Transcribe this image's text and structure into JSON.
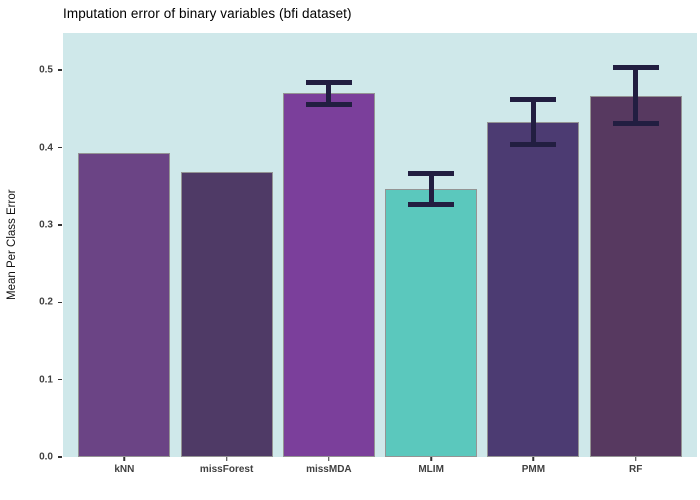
{
  "chart_data": {
    "type": "bar",
    "title": "Imputation error of binary variables (bfi dataset)",
    "xlabel": "",
    "ylabel": "Mean Per Class Error",
    "categories": [
      "kNN",
      "missForest",
      "missMDA",
      "MLIM",
      "PMM",
      "RF"
    ],
    "values": [
      0.393,
      0.369,
      0.47,
      0.346,
      0.433,
      0.467
    ],
    "error_low": [
      null,
      null,
      0.456,
      0.326,
      0.404,
      0.431
    ],
    "error_high": [
      null,
      null,
      0.484,
      0.366,
      0.462,
      0.504
    ],
    "bar_colors": [
      "#6B4485",
      "#4F3A66",
      "#7B3F9B",
      "#5BC8BD",
      "#4C3B72",
      "#573960"
    ],
    "bar_border_color": "#949494",
    "errorbar_color": "#221E41",
    "plot_background": "#CFE8EA",
    "outer_background": "#FFFFFF",
    "yticks": [
      0.0,
      0.1,
      0.2,
      0.3,
      0.4,
      0.5
    ],
    "ytick_labels": [
      "0.0",
      "0.1",
      "0.2",
      "0.3",
      "0.4",
      "0.5"
    ],
    "ylim": [
      0,
      0.548
    ],
    "grid": false,
    "legend_position": "none"
  }
}
